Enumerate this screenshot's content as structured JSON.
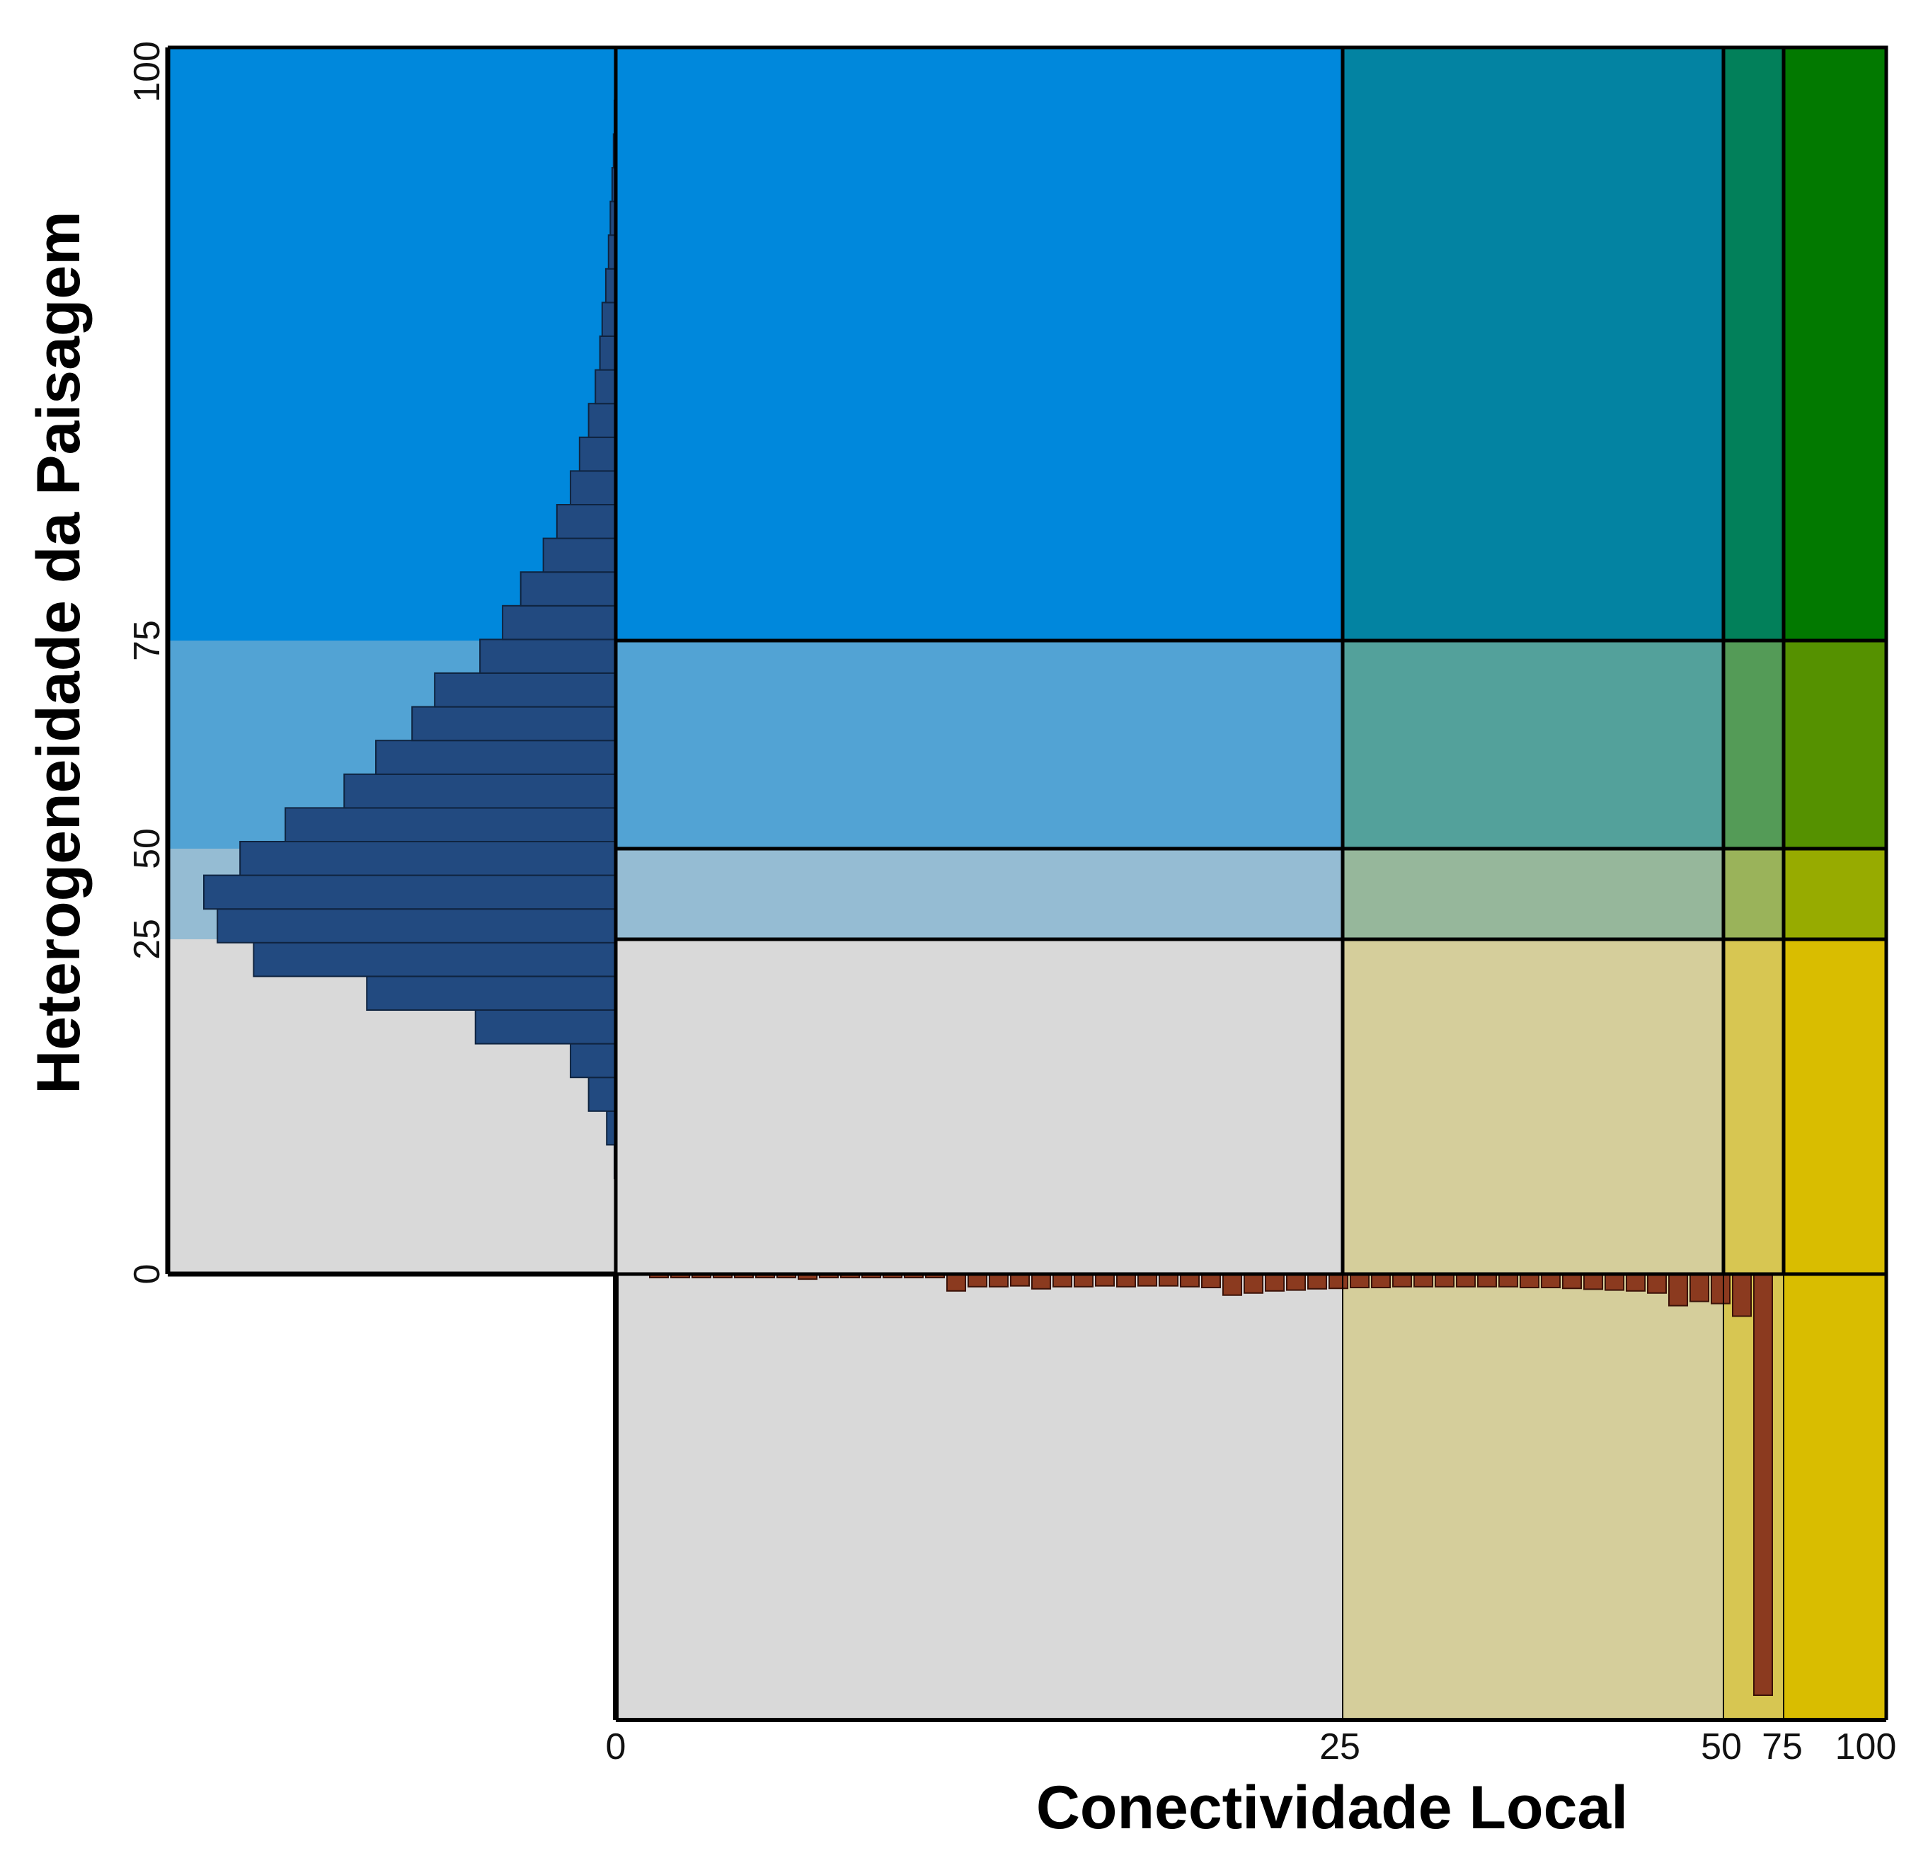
{
  "chart_data": {
    "type": "bivariate-legend-with-marginal-histograms",
    "xlabel": "Conectividade Local",
    "ylabel": "Heterogeneidade da Paisagem",
    "x_breaks": [
      0,
      25,
      50,
      75,
      100
    ],
    "y_breaks": [
      0,
      25,
      50,
      75,
      100
    ],
    "x_tick_labels": [
      "0",
      "25",
      "50",
      "75",
      "100"
    ],
    "y_tick_labels": [
      "0",
      "25",
      "50",
      "75",
      "100"
    ],
    "class_colors": [
      [
        "#d9d9d9",
        "#d5ce9b",
        "#d7c652",
        "#d9bd00"
      ],
      [
        "#95bcd3",
        "#96b79b",
        "#9ab35a",
        "#97ab00"
      ],
      [
        "#52a3d4",
        "#53a19b",
        "#549b57",
        "#559100"
      ],
      [
        "#0088dc",
        "#0383a2",
        "#02805a",
        "#027900"
      ]
    ],
    "histogram_color_y": "#224a80",
    "histogram_color_x": "#8b3a1f",
    "y_histogram": {
      "description": "Frequency (relative, 0-1) of Heterogeneidade classes, bins from bottom (near 0) to top (near 100)",
      "frequencies": [
        0.003,
        0.02,
        0.06,
        0.1,
        0.31,
        0.55,
        0.8,
        0.88,
        0.91,
        0.83,
        0.73,
        0.6,
        0.53,
        0.45,
        0.4,
        0.3,
        0.25,
        0.21,
        0.16,
        0.13,
        0.1,
        0.08,
        0.06,
        0.045,
        0.035,
        0.03,
        0.022,
        0.016,
        0.012,
        0.008,
        0.005,
        0.003
      ]
    },
    "x_histogram": {
      "description": "Frequency (relative, 0-1) of Conectividade classes, bins from left (0) to right (100)",
      "frequencies": [
        0.005,
        0.005,
        0.004,
        0.004,
        0.004,
        0.004,
        0.004,
        0.012,
        0.004,
        0.004,
        0.005,
        0.005,
        0.006,
        0.005,
        0.04,
        0.03,
        0.03,
        0.028,
        0.035,
        0.03,
        0.03,
        0.028,
        0.03,
        0.028,
        0.028,
        0.03,
        0.032,
        0.05,
        0.045,
        0.04,
        0.038,
        0.035,
        0.034,
        0.032,
        0.032,
        0.03,
        0.03,
        0.03,
        0.03,
        0.03,
        0.03,
        0.032,
        0.032,
        0.034,
        0.036,
        0.038,
        0.04,
        0.045,
        0.075,
        0.065,
        0.07,
        0.1,
        1.0
      ]
    }
  }
}
